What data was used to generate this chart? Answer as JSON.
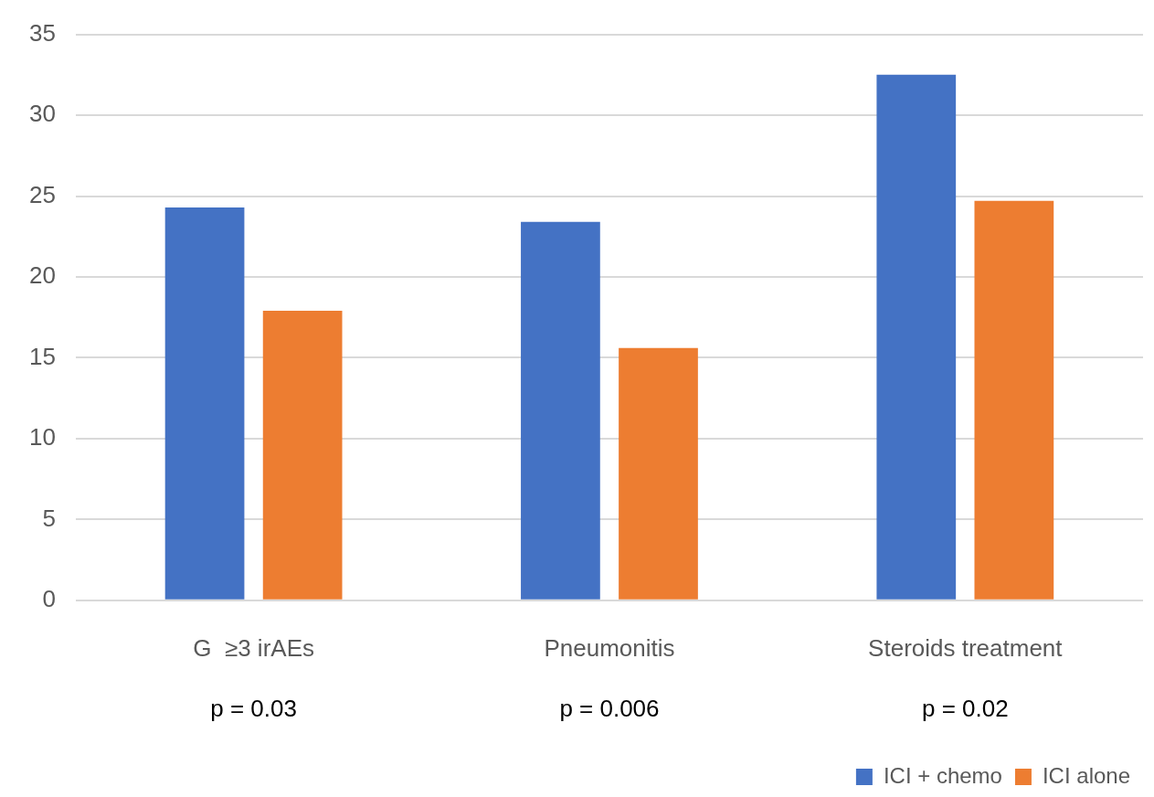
{
  "chart_data": {
    "type": "bar",
    "categories": [
      "G  ≥3 irAEs",
      "Pneumonitis",
      "Steroids treatment"
    ],
    "series": [
      {
        "name": "ICI + chemo",
        "color": "#4472c4",
        "values": [
          24.3,
          23.4,
          32.5
        ]
      },
      {
        "name": "ICI alone",
        "color": "#ed7d31",
        "values": [
          17.9,
          15.6,
          24.7
        ]
      }
    ],
    "ylim": [
      0,
      35
    ],
    "yticks": [
      0,
      5,
      10,
      15,
      20,
      25,
      30,
      35
    ],
    "grid": "y",
    "legend": "bottom",
    "annotations": [
      "p = 0.03",
      "p = 0.006",
      "p = 0.02"
    ]
  }
}
